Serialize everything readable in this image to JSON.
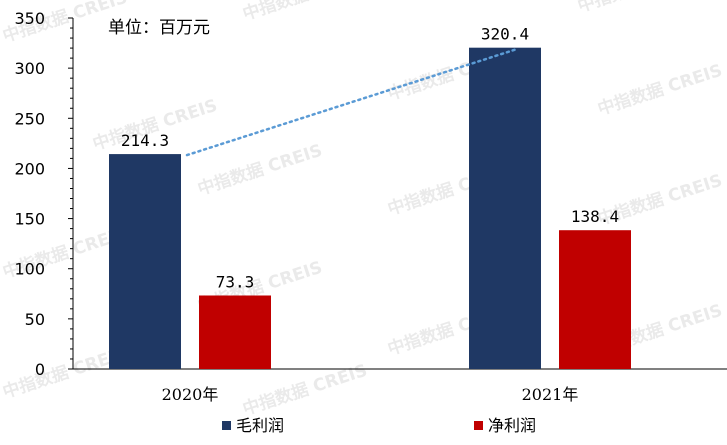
{
  "chart_data": {
    "type": "bar",
    "unit_label": "单位：百万元",
    "categories": [
      "2020年",
      "2021年"
    ],
    "series": [
      {
        "name": "毛利润",
        "values": [
          214.3,
          320.4
        ],
        "color": "#1f3864"
      },
      {
        "name": "净利润",
        "values": [
          73.3,
          138.4
        ],
        "color": "#c00000"
      }
    ],
    "data_labels": [
      [
        "214.3",
        "320.4"
      ],
      [
        "73.3",
        "138.4"
      ]
    ],
    "y_ticks": [
      0,
      50,
      100,
      150,
      200,
      250,
      300,
      350
    ],
    "ylim": [
      0,
      350
    ],
    "trendline": {
      "series": "毛利润",
      "style": "dotted",
      "color": "#5b9bd5"
    },
    "legend_position": "bottom",
    "grid": false,
    "watermark": "中指数据 CREIS"
  }
}
